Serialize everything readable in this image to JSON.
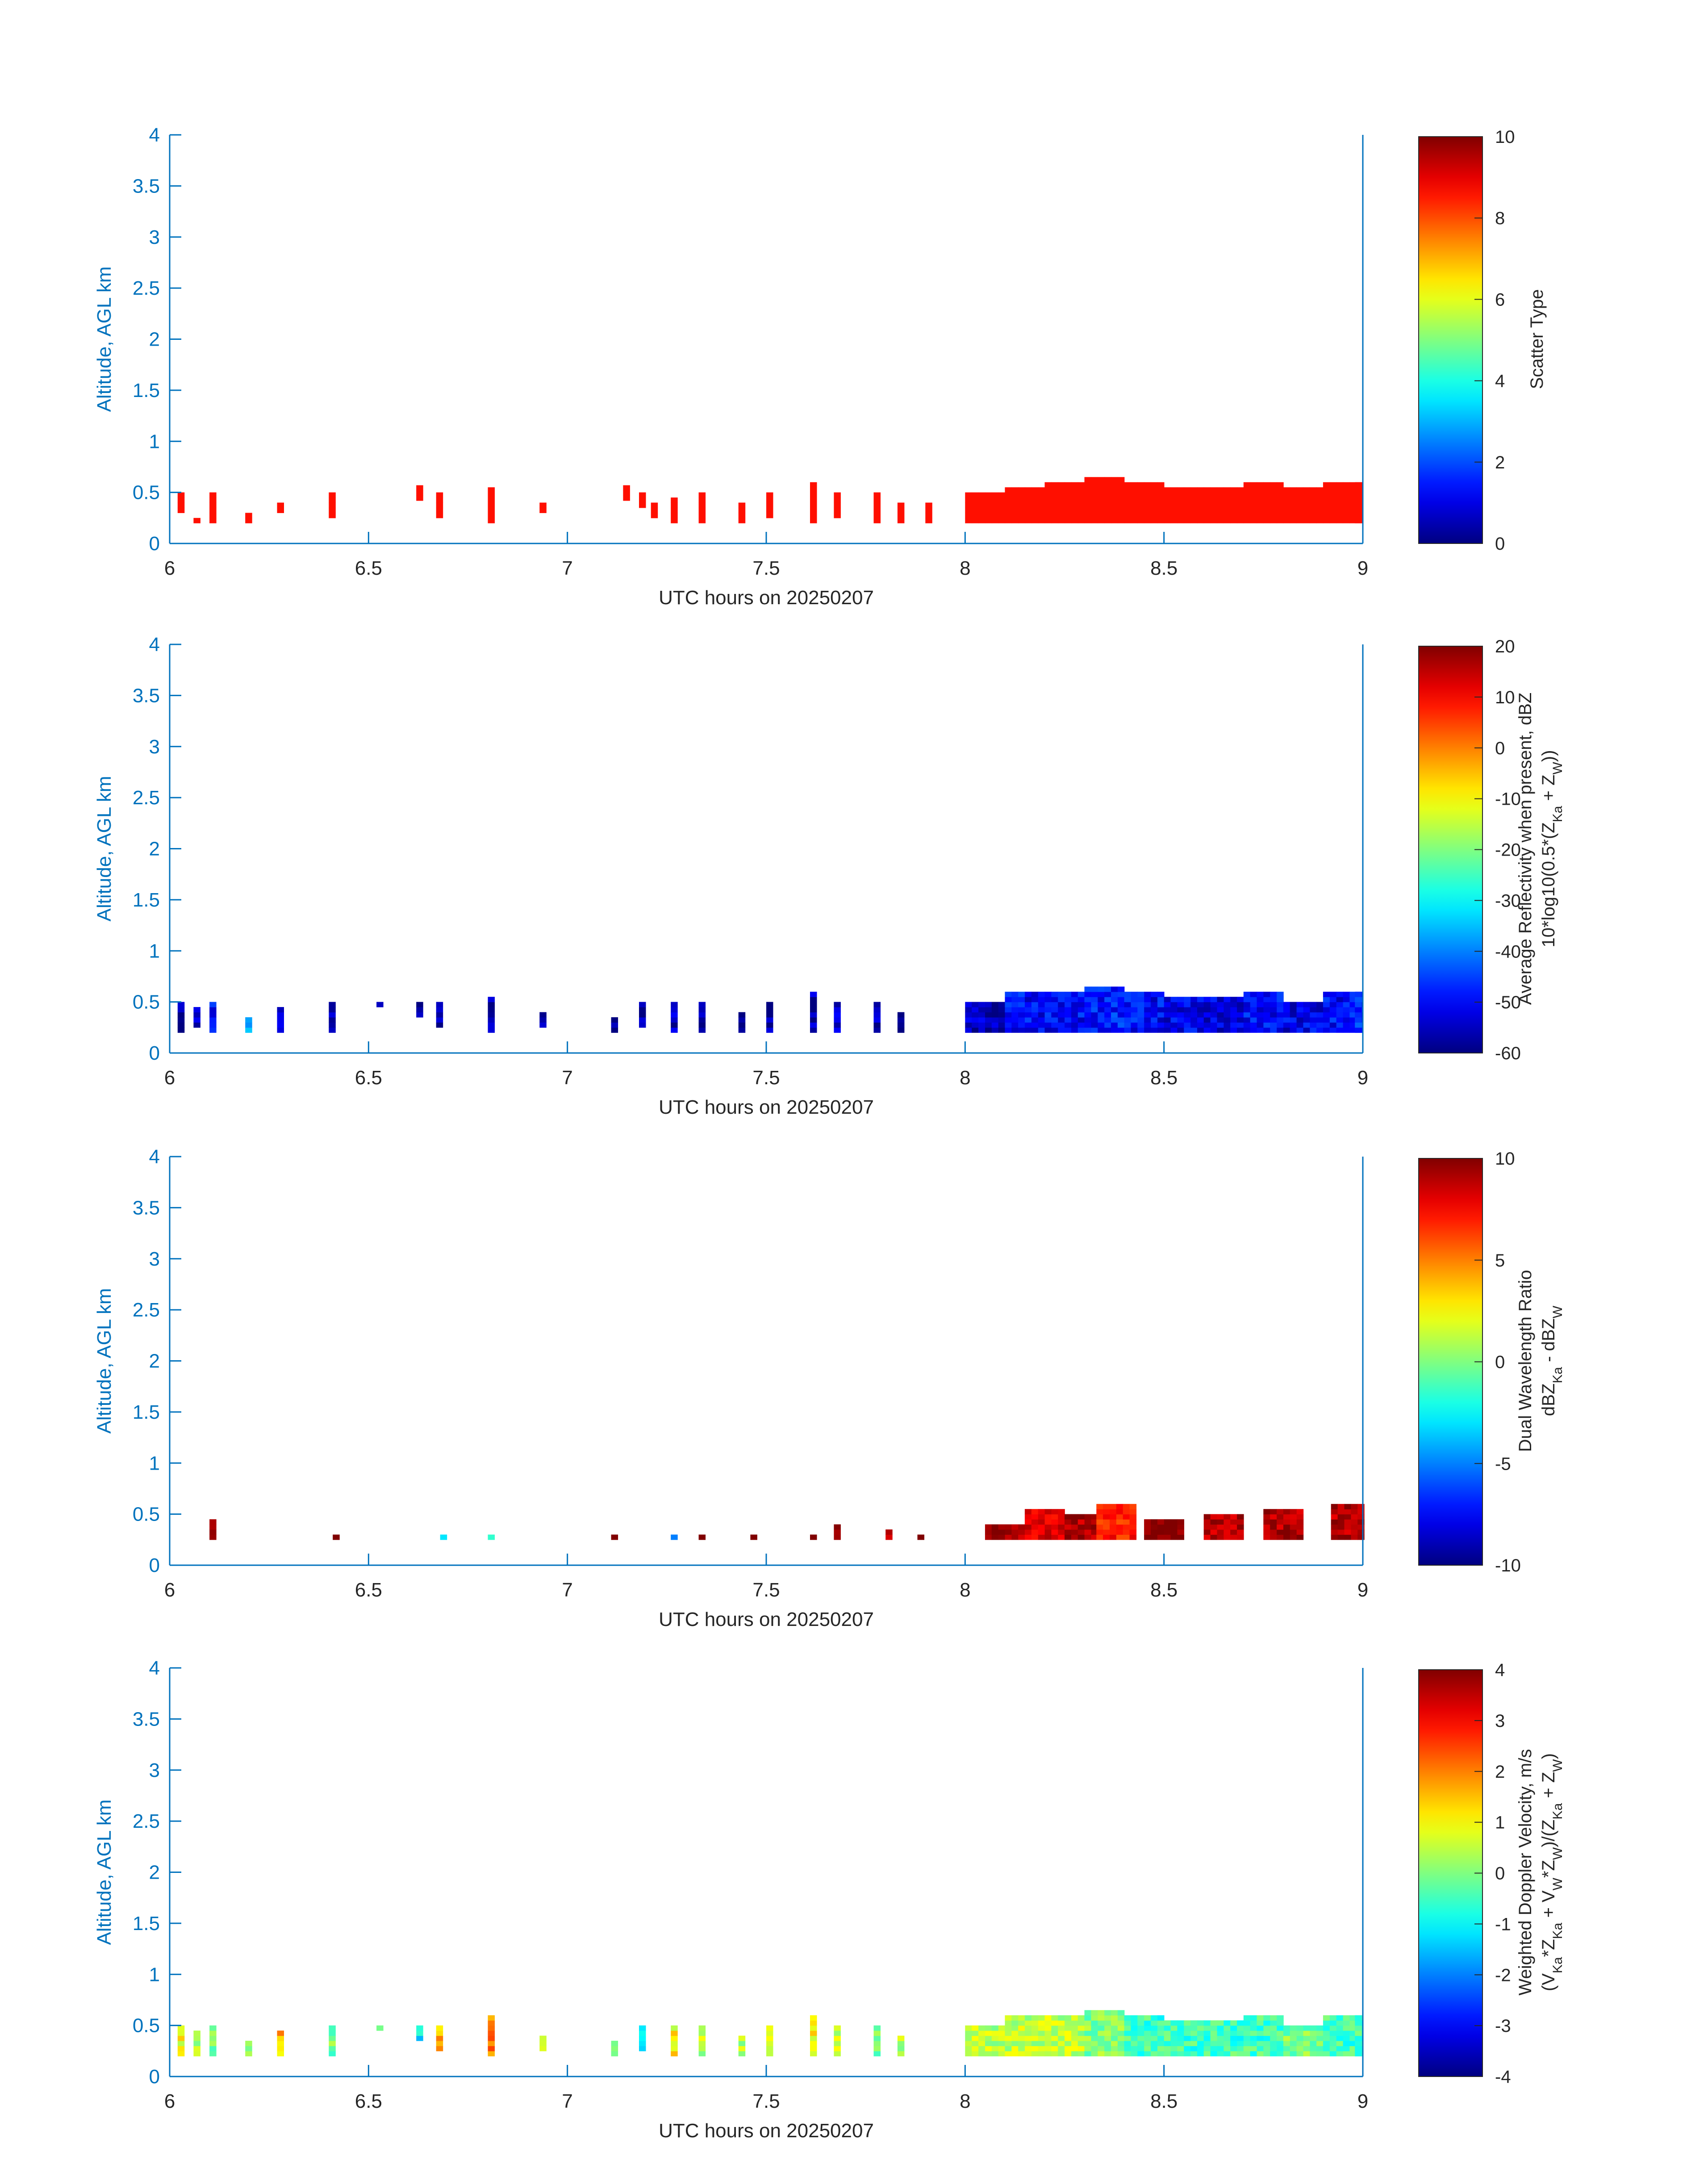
{
  "figure": {
    "panels": [
      {
        "id": "scatter-type",
        "colorbar": {
          "min": 0,
          "max": 10,
          "ticks": [
            0,
            2,
            4,
            6,
            8,
            10
          ]
        },
        "colorbar_label_lines": [
          "Scatter Type"
        ]
      },
      {
        "id": "reflectivity",
        "colorbar": {
          "min": -60,
          "max": 20,
          "ticks": [
            -60,
            -50,
            -40,
            -30,
            -20,
            -10,
            0,
            10,
            20
          ]
        },
        "colorbar_label_lines": [
          "Average Reflectivity when present, dBZ",
          "10*log10(0.5*(Z{Ka} + Z{W}))"
        ]
      },
      {
        "id": "dwr",
        "colorbar": {
          "min": -10,
          "max": 10,
          "ticks": [
            -10,
            -5,
            0,
            5,
            10
          ]
        },
        "colorbar_label_lines": [
          "Dual Wavelength Ratio",
          "dBZ{Ka} - dBZ{W}"
        ]
      },
      {
        "id": "doppler",
        "colorbar": {
          "min": -4,
          "max": 4,
          "ticks": [
            -4,
            -3,
            -2,
            -1,
            0,
            1,
            2,
            3,
            4
          ]
        },
        "colorbar_label_lines": [
          "Weighted Doppler Velocity, m/s",
          "(V{Ka}*Z{Ka} + V{W}*Z{W})/(Z{Ka} + Z{W})"
        ]
      }
    ],
    "colors": {
      "axis": "#0072bd",
      "text": "#262626",
      "background": "#ffffff"
    },
    "colormap": "jet"
  },
  "chart_data": [
    {
      "type": "heatmap",
      "title": "",
      "xlabel": "UTC hours on 20250207",
      "ylabel": "Altitude, AGL km",
      "xlim": [
        6,
        9
      ],
      "ylim": [
        0,
        4
      ],
      "xticks": [
        6,
        6.5,
        7,
        7.5,
        8,
        8.5,
        9
      ],
      "yticks": [
        0,
        0.5,
        1,
        1.5,
        2,
        2.5,
        3,
        3.5,
        4
      ],
      "colorbar_label": "Scatter Type",
      "clim": [
        0,
        10
      ],
      "bin_width_hours": 0.0167,
      "columns": [
        {
          "t": 6.02,
          "bottom": 0.3,
          "top": 0.5,
          "value": 8.6
        },
        {
          "t": 6.06,
          "bottom": 0.2,
          "top": 0.25,
          "value": 8.6
        },
        {
          "t": 6.1,
          "bottom": 0.2,
          "top": 0.5,
          "value": 8.6
        },
        {
          "t": 6.19,
          "bottom": 0.2,
          "top": 0.3,
          "value": 8.6
        },
        {
          "t": 6.27,
          "bottom": 0.3,
          "top": 0.42,
          "value": 8.6
        },
        {
          "t": 6.4,
          "bottom": 0.25,
          "top": 0.5,
          "value": 8.6
        },
        {
          "t": 6.62,
          "bottom": 0.42,
          "top": 0.55,
          "value": 8.6
        },
        {
          "t": 6.67,
          "bottom": 0.25,
          "top": 0.48,
          "value": 8.6
        },
        {
          "t": 6.8,
          "bottom": 0.2,
          "top": 0.55,
          "value": 8.6
        },
        {
          "t": 6.93,
          "bottom": 0.3,
          "top": 0.38,
          "value": 8.6
        },
        {
          "t": 7.14,
          "bottom": 0.42,
          "top": 0.55,
          "value": 8.6
        },
        {
          "t": 7.18,
          "bottom": 0.35,
          "top": 0.5,
          "value": 8.6
        },
        {
          "t": 7.21,
          "bottom": 0.25,
          "top": 0.42,
          "value": 8.6
        },
        {
          "t": 7.26,
          "bottom": 0.2,
          "top": 0.45,
          "value": 8.6
        },
        {
          "t": 7.33,
          "bottom": 0.2,
          "top": 0.48,
          "value": 8.6
        },
        {
          "t": 7.43,
          "bottom": 0.2,
          "top": 0.42,
          "value": 8.6
        },
        {
          "t": 7.5,
          "bottom": 0.25,
          "top": 0.48,
          "value": 8.6
        },
        {
          "t": 7.61,
          "bottom": 0.2,
          "top": 0.6,
          "value": 8.6
        },
        {
          "t": 7.67,
          "bottom": 0.25,
          "top": 0.48,
          "value": 8.6
        },
        {
          "t": 7.77,
          "bottom": 0.2,
          "top": 0.48,
          "value": 8.6
        },
        {
          "t": 7.83,
          "bottom": 0.2,
          "top": 0.42,
          "value": 8.6
        },
        {
          "t": 7.9,
          "bottom": 0.2,
          "top": 0.38,
          "value": 8.6
        },
        {
          "t": 8.0,
          "bottom": 0.2,
          "top": 0.48,
          "value": 8.6
        },
        {
          "t": 8.1,
          "bottom": 0.2,
          "top": 0.55,
          "value": 8.6
        },
        {
          "t": 8.2,
          "bottom": 0.2,
          "top": 0.6,
          "value": 8.6
        },
        {
          "t": 8.3,
          "bottom": 0.2,
          "top": 0.65,
          "value": 8.6
        },
        {
          "t": 8.4,
          "bottom": 0.2,
          "top": 0.6,
          "value": 8.6
        },
        {
          "t": 8.5,
          "bottom": 0.2,
          "top": 0.55,
          "value": 8.6
        },
        {
          "t": 8.6,
          "bottom": 0.2,
          "top": 0.55,
          "value": 8.6
        },
        {
          "t": 8.7,
          "bottom": 0.2,
          "top": 0.58,
          "value": 8.6
        },
        {
          "t": 8.8,
          "bottom": 0.2,
          "top": 0.55,
          "value": 8.6
        },
        {
          "t": 8.9,
          "bottom": 0.2,
          "top": 0.58,
          "value": 8.6
        },
        {
          "t": 8.98,
          "bottom": 0.2,
          "top": 0.62,
          "value": 8.6
        }
      ]
    },
    {
      "type": "heatmap",
      "title": "",
      "xlabel": "UTC hours on 20250207",
      "ylabel": "Altitude, AGL km",
      "xlim": [
        6,
        9
      ],
      "ylim": [
        0,
        4
      ],
      "xticks": [
        6,
        6.5,
        7,
        7.5,
        8,
        8.5,
        9
      ],
      "yticks": [
        0,
        0.5,
        1,
        1.5,
        2,
        2.5,
        3,
        3.5,
        4
      ],
      "colorbar_label": "Average Reflectivity when present, dBZ",
      "clim": [
        -60,
        20
      ],
      "bin_width_hours": 0.0167,
      "columns": [
        {
          "t": 6.02,
          "bottom": 0.2,
          "top": 0.5,
          "value": -58
        },
        {
          "t": 6.06,
          "bottom": 0.25,
          "top": 0.45,
          "value": -55
        },
        {
          "t": 6.1,
          "bottom": 0.2,
          "top": 0.5,
          "value": -50
        },
        {
          "t": 6.19,
          "bottom": 0.2,
          "top": 0.35,
          "value": -40
        },
        {
          "t": 6.27,
          "bottom": 0.2,
          "top": 0.45,
          "value": -54
        },
        {
          "t": 6.4,
          "bottom": 0.2,
          "top": 0.5,
          "value": -58
        },
        {
          "t": 6.52,
          "bottom": 0.45,
          "top": 0.5,
          "value": -52
        },
        {
          "t": 6.62,
          "bottom": 0.35,
          "top": 0.5,
          "value": -58
        },
        {
          "t": 6.67,
          "bottom": 0.25,
          "top": 0.48,
          "value": -58
        },
        {
          "t": 6.8,
          "bottom": 0.2,
          "top": 0.55,
          "value": -58
        },
        {
          "t": 6.93,
          "bottom": 0.25,
          "top": 0.38,
          "value": -58
        },
        {
          "t": 7.11,
          "bottom": 0.2,
          "top": 0.35,
          "value": -58
        },
        {
          "t": 7.18,
          "bottom": 0.25,
          "top": 0.5,
          "value": -58
        },
        {
          "t": 7.26,
          "bottom": 0.2,
          "top": 0.48,
          "value": -56
        },
        {
          "t": 7.33,
          "bottom": 0.2,
          "top": 0.48,
          "value": -58
        },
        {
          "t": 7.43,
          "bottom": 0.2,
          "top": 0.42,
          "value": -58
        },
        {
          "t": 7.5,
          "bottom": 0.2,
          "top": 0.52,
          "value": -57
        },
        {
          "t": 7.61,
          "bottom": 0.2,
          "top": 0.62,
          "value": -56
        },
        {
          "t": 7.67,
          "bottom": 0.2,
          "top": 0.48,
          "value": -55
        },
        {
          "t": 7.77,
          "bottom": 0.2,
          "top": 0.48,
          "value": -57
        },
        {
          "t": 7.83,
          "bottom": 0.2,
          "top": 0.42,
          "value": -58
        },
        {
          "t": 8.0,
          "bottom": 0.2,
          "top": 0.5,
          "value": -55
        },
        {
          "t": 8.1,
          "bottom": 0.2,
          "top": 0.58,
          "value": -50
        },
        {
          "t": 8.2,
          "bottom": 0.2,
          "top": 0.6,
          "value": -50
        },
        {
          "t": 8.3,
          "bottom": 0.2,
          "top": 0.65,
          "value": -48
        },
        {
          "t": 8.4,
          "bottom": 0.2,
          "top": 0.58,
          "value": -50
        },
        {
          "t": 8.5,
          "bottom": 0.2,
          "top": 0.55,
          "value": -52
        },
        {
          "t": 8.6,
          "bottom": 0.2,
          "top": 0.55,
          "value": -52
        },
        {
          "t": 8.7,
          "bottom": 0.2,
          "top": 0.58,
          "value": -50
        },
        {
          "t": 8.8,
          "bottom": 0.2,
          "top": 0.52,
          "value": -52
        },
        {
          "t": 8.9,
          "bottom": 0.2,
          "top": 0.58,
          "value": -50
        },
        {
          "t": 8.98,
          "bottom": 0.2,
          "top": 0.6,
          "value": -48
        }
      ]
    },
    {
      "type": "heatmap",
      "title": "",
      "xlabel": "UTC hours on 20250207",
      "ylabel": "Altitude, AGL km",
      "xlim": [
        6,
        9
      ],
      "ylim": [
        0,
        4
      ],
      "xticks": [
        6,
        6.5,
        7,
        7.5,
        8,
        8.5,
        9
      ],
      "yticks": [
        0,
        0.5,
        1,
        1.5,
        2,
        2.5,
        3,
        3.5,
        4
      ],
      "colorbar_label": "Dual Wavelength Ratio",
      "clim": [
        -10,
        10
      ],
      "bin_width_hours": 0.0167,
      "columns": [
        {
          "t": 6.1,
          "bottom": 0.25,
          "top": 0.45,
          "value": 10
        },
        {
          "t": 6.41,
          "bottom": 0.25,
          "top": 0.3,
          "value": 10
        },
        {
          "t": 6.68,
          "bottom": 0.25,
          "top": 0.3,
          "value": -3
        },
        {
          "t": 6.8,
          "bottom": 0.25,
          "top": 0.3,
          "value": -1
        },
        {
          "t": 7.11,
          "bottom": 0.25,
          "top": 0.3,
          "value": 10
        },
        {
          "t": 7.26,
          "bottom": 0.25,
          "top": 0.3,
          "value": -5
        },
        {
          "t": 7.33,
          "bottom": 0.25,
          "top": 0.3,
          "value": 9
        },
        {
          "t": 7.46,
          "bottom": 0.25,
          "top": 0.3,
          "value": 10
        },
        {
          "t": 7.61,
          "bottom": 0.25,
          "top": 0.3,
          "value": 10
        },
        {
          "t": 7.67,
          "bottom": 0.25,
          "top": 0.42,
          "value": 10
        },
        {
          "t": 7.8,
          "bottom": 0.25,
          "top": 0.35,
          "value": 8
        },
        {
          "t": 7.88,
          "bottom": 0.25,
          "top": 0.3,
          "value": 10
        },
        {
          "t": 8.05,
          "bottom": 0.25,
          "top": 0.38,
          "value": 9
        },
        {
          "t": 8.15,
          "bottom": 0.25,
          "top": 0.55,
          "value": 8
        },
        {
          "t": 8.25,
          "bottom": 0.25,
          "top": 0.5,
          "value": 9
        },
        {
          "t": 8.33,
          "bottom": 0.25,
          "top": 0.58,
          "value": 7
        },
        {
          "t": 8.45,
          "bottom": 0.25,
          "top": 0.45,
          "value": 10
        },
        {
          "t": 8.6,
          "bottom": 0.25,
          "top": 0.5,
          "value": 9
        },
        {
          "t": 8.75,
          "bottom": 0.25,
          "top": 0.55,
          "value": 9
        },
        {
          "t": 8.92,
          "bottom": 0.25,
          "top": 0.58,
          "value": 9
        }
      ]
    },
    {
      "type": "heatmap",
      "title": "",
      "xlabel": "UTC hours on 20250207",
      "ylabel": "Altitude, AGL km",
      "xlim": [
        6,
        9
      ],
      "ylim": [
        0,
        4
      ],
      "xticks": [
        6,
        6.5,
        7,
        7.5,
        8,
        8.5,
        9
      ],
      "yticks": [
        0,
        0.5,
        1,
        1.5,
        2,
        2.5,
        3,
        3.5,
        4
      ],
      "colorbar_label": "Weighted Doppler Velocity, m/s",
      "clim": [
        -4,
        4
      ],
      "bin_width_hours": 0.0167,
      "columns": [
        {
          "t": 6.02,
          "bottom": 0.2,
          "top": 0.5,
          "value": 1
        },
        {
          "t": 6.06,
          "bottom": 0.2,
          "top": 0.45,
          "value": 0.5
        },
        {
          "t": 6.1,
          "bottom": 0.2,
          "top": 0.5,
          "value": 0
        },
        {
          "t": 6.19,
          "bottom": 0.2,
          "top": 0.35,
          "value": 0.5
        },
        {
          "t": 6.27,
          "bottom": 0.2,
          "top": 0.45,
          "value": 1.5
        },
        {
          "t": 6.4,
          "bottom": 0.2,
          "top": 0.5,
          "value": 0
        },
        {
          "t": 6.52,
          "bottom": 0.45,
          "top": 0.5,
          "value": -0.5
        },
        {
          "t": 6.62,
          "bottom": 0.35,
          "top": 0.5,
          "value": -1
        },
        {
          "t": 6.67,
          "bottom": 0.25,
          "top": 0.48,
          "value": 1.5
        },
        {
          "t": 6.8,
          "bottom": 0.2,
          "top": 0.6,
          "value": 2
        },
        {
          "t": 6.93,
          "bottom": 0.25,
          "top": 0.38,
          "value": 1
        },
        {
          "t": 7.11,
          "bottom": 0.2,
          "top": 0.35,
          "value": -0.5
        },
        {
          "t": 7.18,
          "bottom": 0.25,
          "top": 0.5,
          "value": -1
        },
        {
          "t": 7.26,
          "bottom": 0.2,
          "top": 0.48,
          "value": 1
        },
        {
          "t": 7.33,
          "bottom": 0.2,
          "top": 0.48,
          "value": 0.5
        },
        {
          "t": 7.43,
          "bottom": 0.2,
          "top": 0.42,
          "value": 0.5
        },
        {
          "t": 7.5,
          "bottom": 0.2,
          "top": 0.52,
          "value": 0.5
        },
        {
          "t": 7.61,
          "bottom": 0.2,
          "top": 0.62,
          "value": 1
        },
        {
          "t": 7.67,
          "bottom": 0.2,
          "top": 0.48,
          "value": 0.5
        },
        {
          "t": 7.77,
          "bottom": 0.2,
          "top": 0.48,
          "value": 0
        },
        {
          "t": 7.83,
          "bottom": 0.2,
          "top": 0.42,
          "value": 0.5
        },
        {
          "t": 8.0,
          "bottom": 0.2,
          "top": 0.5,
          "value": 0.5
        },
        {
          "t": 8.1,
          "bottom": 0.2,
          "top": 0.58,
          "value": 0.5
        },
        {
          "t": 8.2,
          "bottom": 0.2,
          "top": 0.6,
          "value": 0.5
        },
        {
          "t": 8.3,
          "bottom": 0.2,
          "top": 0.65,
          "value": 0
        },
        {
          "t": 8.4,
          "bottom": 0.2,
          "top": 0.58,
          "value": -0.5
        },
        {
          "t": 8.5,
          "bottom": 0.2,
          "top": 0.55,
          "value": -0.5
        },
        {
          "t": 8.6,
          "bottom": 0.2,
          "top": 0.55,
          "value": -0.5
        },
        {
          "t": 8.7,
          "bottom": 0.2,
          "top": 0.58,
          "value": -0.5
        },
        {
          "t": 8.8,
          "bottom": 0.2,
          "top": 0.52,
          "value": 0
        },
        {
          "t": 8.9,
          "bottom": 0.2,
          "top": 0.58,
          "value": -0.5
        },
        {
          "t": 8.98,
          "bottom": 0.2,
          "top": 0.6,
          "value": -0.5
        }
      ]
    }
  ]
}
